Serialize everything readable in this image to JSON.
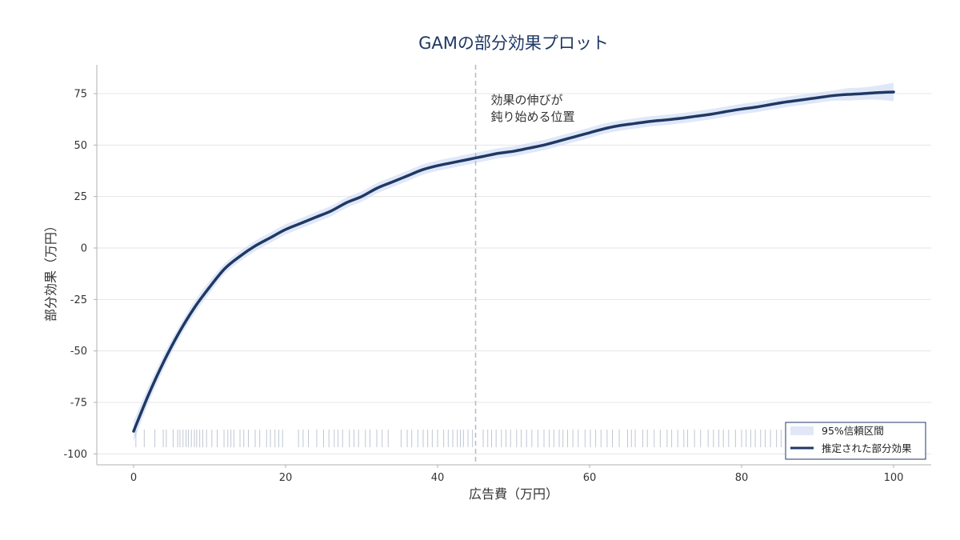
{
  "chart_data": {
    "type": "line",
    "title": "GAMの部分効果プロット",
    "xlabel": "広告費（万円）",
    "ylabel": "部分効果（万円）",
    "xlim": [
      -5,
      105
    ],
    "ylim": [
      -105,
      90
    ],
    "xticks": [
      0,
      20,
      40,
      60,
      80,
      100
    ],
    "yticks": [
      75,
      50,
      25,
      0,
      -25,
      -50,
      -75,
      -100
    ],
    "grid": "horizontal",
    "legend_position": "bottom-right",
    "colors": {
      "line": "#1f3864",
      "band": "#c6d6f2",
      "vline": "#a9bccd",
      "rug": "#aab4c4",
      "grid": "#e6e6e6",
      "axis": "#b0b0b0"
    },
    "series": [
      {
        "name": "推定された部分効果",
        "x": [
          0,
          2,
          4,
          6,
          8,
          10,
          12,
          14,
          16,
          18,
          20,
          22,
          24,
          26,
          28,
          30,
          32,
          34,
          36,
          38,
          40,
          42,
          44,
          46,
          48,
          50,
          52,
          54,
          56,
          58,
          60,
          62,
          64,
          66,
          68,
          70,
          72,
          74,
          76,
          78,
          80,
          82,
          84,
          86,
          88,
          90,
          92,
          94,
          96,
          98,
          100
        ],
        "y": [
          -89,
          -71,
          -55,
          -41,
          -29,
          -19,
          -10,
          -4,
          1,
          5,
          9,
          12,
          15,
          18,
          22,
          25,
          29,
          32,
          35,
          38,
          40,
          41.5,
          43,
          44.5,
          46,
          47,
          48.5,
          50,
          52,
          54,
          56,
          58,
          59.5,
          60.5,
          61.5,
          62.2,
          63,
          64,
          65,
          66.3,
          67.5,
          68.5,
          69.8,
          71,
          72,
          73,
          74,
          74.6,
          75,
          75.5,
          75.8
        ],
        "ci_halfwidth": [
          5,
          4,
          3.5,
          3,
          3,
          3,
          2.5,
          2.5,
          2.5,
          2.5,
          2.5,
          2.5,
          2.5,
          2.5,
          2.5,
          2.5,
          2.5,
          2.5,
          2.5,
          2.5,
          2.5,
          2.5,
          2.5,
          2.5,
          2.5,
          2.5,
          2.5,
          2.5,
          2.5,
          2.5,
          2.5,
          2.5,
          2.5,
          2.5,
          2.5,
          2.5,
          2.5,
          2.5,
          2.5,
          2.5,
          2.5,
          2.5,
          2.5,
          2.5,
          2.5,
          2.5,
          2.5,
          3,
          3,
          3.5,
          4.5
        ]
      }
    ],
    "band_name": "95%信頼区間",
    "vline": {
      "x": 45,
      "style": "dashed"
    },
    "annotation": {
      "lines": [
        "効果の伸びが",
        "鈍り始める位置"
      ],
      "x": 47,
      "y": 70
    },
    "rug": {
      "y": -92.5,
      "x": [
        0.3,
        1.4,
        2.8,
        3.9,
        4.3,
        5.2,
        5.8,
        6.1,
        6.5,
        6.9,
        7.2,
        7.6,
        8.0,
        8.3,
        8.7,
        9.1,
        9.6,
        10.3,
        11.0,
        11.9,
        12.4,
        12.8,
        13.2,
        14.0,
        14.5,
        15.1,
        16.0,
        16.6,
        17.5,
        18.0,
        18.6,
        19.1,
        19.6,
        21.7,
        22.3,
        23.0,
        24.1,
        25.0,
        25.7,
        26.4,
        26.9,
        27.5,
        28.4,
        29.0,
        29.6,
        30.5,
        31.1,
        32.0,
        32.7,
        33.5,
        35.2,
        36.0,
        36.6,
        37.4,
        38.1,
        38.7,
        39.3,
        40.0,
        40.8,
        41.4,
        42.0,
        42.6,
        43.0,
        43.4,
        44.0,
        44.6,
        46.0,
        46.6,
        47.1,
        47.7,
        48.4,
        49.0,
        49.6,
        50.4,
        51.0,
        51.7,
        52.4,
        53.2,
        54.0,
        54.7,
        55.3,
        56.0,
        56.5,
        57.1,
        57.8,
        58.5,
        59.4,
        60.1,
        60.8,
        61.5,
        62.3,
        63.0,
        63.9,
        65.0,
        65.5,
        66.0,
        67.0,
        67.6,
        68.5,
        69.3,
        70.2,
        70.8,
        71.6,
        72.4,
        72.9,
        73.8,
        74.6,
        75.6,
        76.3,
        77.0,
        77.6,
        78.3,
        79.2,
        80.0,
        80.6,
        81.2,
        81.8,
        82.5,
        83.1,
        83.8,
        84.6,
        85.2,
        85.9,
        87.0,
        88.0,
        88.9,
        89.8,
        90.4,
        91.3,
        92.0,
        92.8,
        93.7,
        94.5,
        95.3,
        96.1,
        97.0,
        97.8,
        98.8
      ]
    }
  }
}
